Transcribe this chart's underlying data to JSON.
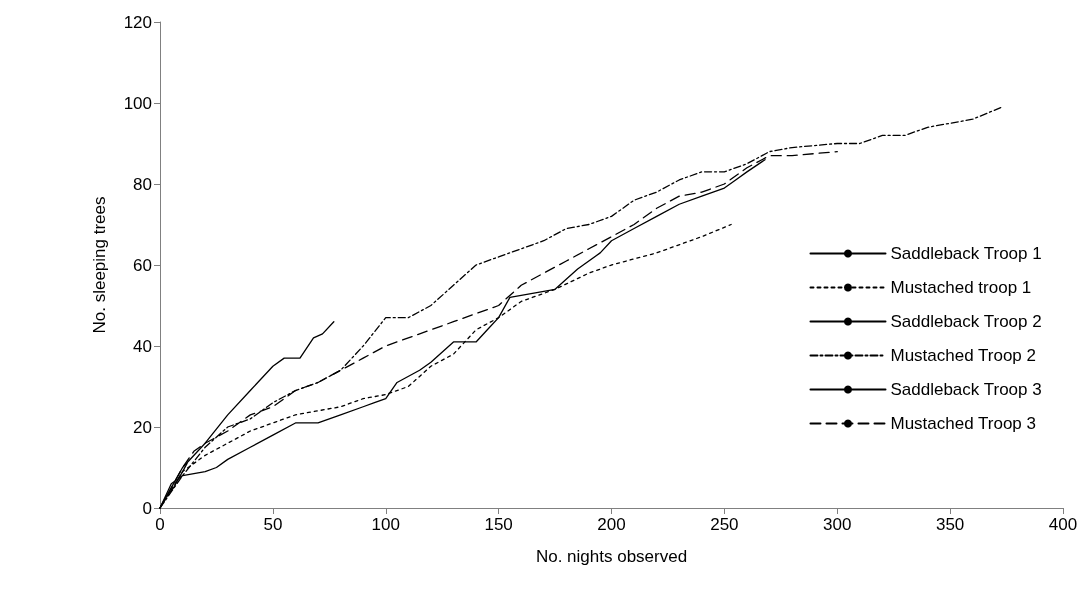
{
  "chart_data": {
    "type": "line",
    "xlabel": "No. nights observed",
    "ylabel": "No. sleeping trees",
    "xlim": [
      0,
      400
    ],
    "xticks": [
      0,
      50,
      100,
      150,
      200,
      250,
      300,
      350,
      400
    ],
    "ylim": [
      0,
      120
    ],
    "yticks": [
      0,
      20,
      40,
      60,
      80,
      100,
      120
    ],
    "grid": false,
    "legend": "right",
    "marker": "none",
    "series": [
      {
        "name": "Saddleback Troop 1",
        "color": "#000000",
        "line_style": "solid",
        "x": [
          0,
          5,
          10,
          20,
          30,
          40,
          50,
          55,
          62,
          68,
          72,
          77
        ],
        "values": [
          0,
          5,
          10,
          16,
          23,
          29,
          35,
          37,
          37,
          42,
          43,
          46
        ]
      },
      {
        "name": "Mustached troop 1",
        "color": "#000000",
        "line_style": "dotted",
        "x": [
          0,
          10,
          20,
          30,
          40,
          50,
          60,
          80,
          90,
          100,
          110,
          120,
          130,
          140,
          150,
          160,
          175,
          190,
          200,
          220,
          240,
          253
        ],
        "values": [
          0,
          9,
          13,
          16,
          19,
          21,
          23,
          25,
          27,
          28,
          30,
          35,
          38,
          44,
          47,
          51,
          54,
          58,
          60,
          63,
          67,
          70
        ]
      },
      {
        "name": "Saddleback Troop 2",
        "color": "#000000",
        "line_style": "solid",
        "x": [
          0,
          5,
          10,
          20,
          25,
          30,
          40,
          50,
          60,
          70,
          80,
          90,
          95,
          100,
          105,
          115,
          120,
          130,
          140,
          145,
          150,
          155,
          165,
          175,
          185,
          195,
          200,
          210,
          220,
          230,
          240,
          250,
          255,
          260,
          268
        ],
        "values": [
          0,
          6,
          8,
          9,
          10,
          12,
          15,
          18,
          21,
          21,
          23,
          25,
          26,
          27,
          31,
          34,
          36,
          41,
          41,
          44,
          47,
          52,
          53,
          54,
          59,
          63,
          66,
          69,
          72,
          75,
          77,
          79,
          81,
          83,
          86
        ]
      },
      {
        "name": "Mustached Troop 2",
        "color": "#000000",
        "line_style": "dashdot",
        "x": [
          0,
          10,
          20,
          30,
          40,
          50,
          60,
          70,
          80,
          90,
          100,
          110,
          120,
          130,
          140,
          150,
          160,
          170,
          180,
          190,
          200,
          210,
          220,
          230,
          240,
          250,
          260,
          270,
          280,
          300,
          310,
          320,
          330,
          340,
          350,
          360,
          373
        ],
        "values": [
          0,
          8,
          15,
          20,
          22,
          26,
          29,
          31,
          34,
          40,
          47,
          47,
          50,
          55,
          60,
          62,
          64,
          66,
          69,
          70,
          72,
          76,
          78,
          81,
          83,
          83,
          85,
          88,
          89,
          90,
          90,
          92,
          92,
          94,
          95,
          96,
          99
        ]
      },
      {
        "name": "Saddleback Troop 3",
        "color": "#000000",
        "line_style": "solid",
        "x": [
          0,
          3,
          6,
          9,
          12
        ],
        "values": [
          0,
          3,
          5,
          8,
          11
        ]
      },
      {
        "name": "Mustached Troop 3",
        "color": "#000000",
        "line_style": "dashed",
        "x": [
          0,
          10,
          15,
          20,
          30,
          40,
          50,
          60,
          70,
          80,
          90,
          100,
          110,
          120,
          130,
          140,
          150,
          160,
          170,
          180,
          190,
          200,
          210,
          220,
          230,
          240,
          250,
          260,
          270,
          280,
          300
        ],
        "values": [
          0,
          10,
          14,
          16,
          19,
          23,
          25,
          29,
          31,
          34,
          37,
          40,
          42,
          44,
          46,
          48,
          50,
          55,
          58,
          61,
          64,
          67,
          70,
          74,
          77,
          78,
          80,
          84,
          87,
          87,
          88
        ]
      }
    ]
  }
}
